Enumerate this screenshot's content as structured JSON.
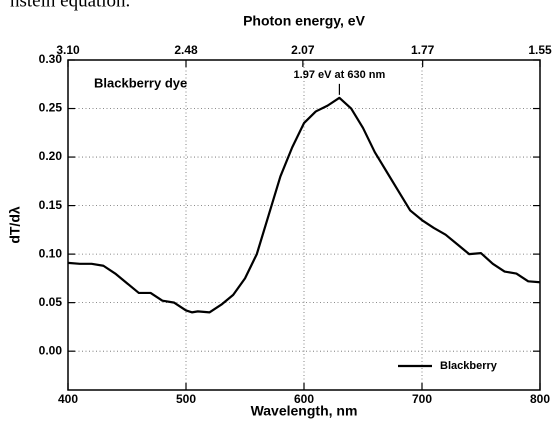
{
  "text_above": "nstein equation.",
  "chart_data": {
    "type": "line",
    "xlabel": "Wavelength, nm",
    "x2label": "Photon energy, eV",
    "ylabel": "dT/dλ",
    "title": "Blackberry dye",
    "annotation": {
      "text": "1.97 eV at 630 nm",
      "x": 630,
      "y": 0.261
    },
    "xlim": [
      400,
      800
    ],
    "xticks": [
      400,
      500,
      600,
      700,
      800
    ],
    "x2ticks": [
      {
        "value": 3.1,
        "label": "3.10"
      },
      2.48,
      2.07,
      1.77,
      1.55
    ],
    "ylim": [
      -0.04,
      0.3
    ],
    "yticks": [
      {
        "value": 0,
        "label": "0.00"
      },
      0.05,
      {
        "value": 0.1,
        "label": "0.10"
      },
      0.15,
      {
        "value": 0.2,
        "label": "0.20"
      },
      0.25,
      {
        "value": 0.3,
        "label": "0.30"
      }
    ],
    "grid": true,
    "legend": "lower right",
    "series": [
      {
        "name": "Blackberry",
        "color": "#000000",
        "x": [
          400,
          410,
          420,
          430,
          440,
          450,
          460,
          470,
          480,
          490,
          500,
          505,
          510,
          520,
          530,
          540,
          550,
          560,
          570,
          580,
          590,
          600,
          610,
          620,
          630,
          640,
          650,
          660,
          670,
          680,
          690,
          700,
          710,
          720,
          730,
          740,
          750,
          760,
          770,
          780,
          790,
          800
        ],
        "values": [
          0.091,
          0.09,
          0.09,
          0.088,
          0.08,
          0.07,
          0.06,
          0.06,
          0.052,
          0.05,
          0.042,
          0.04,
          0.041,
          0.04,
          0.048,
          0.058,
          0.075,
          0.1,
          0.14,
          0.18,
          0.21,
          0.235,
          0.247,
          0.253,
          0.261,
          0.25,
          0.23,
          0.205,
          0.185,
          0.165,
          0.145,
          0.135,
          0.127,
          0.12,
          0.11,
          0.1,
          0.101,
          0.09,
          0.082,
          0.08,
          0.072,
          0.071
        ]
      }
    ]
  }
}
